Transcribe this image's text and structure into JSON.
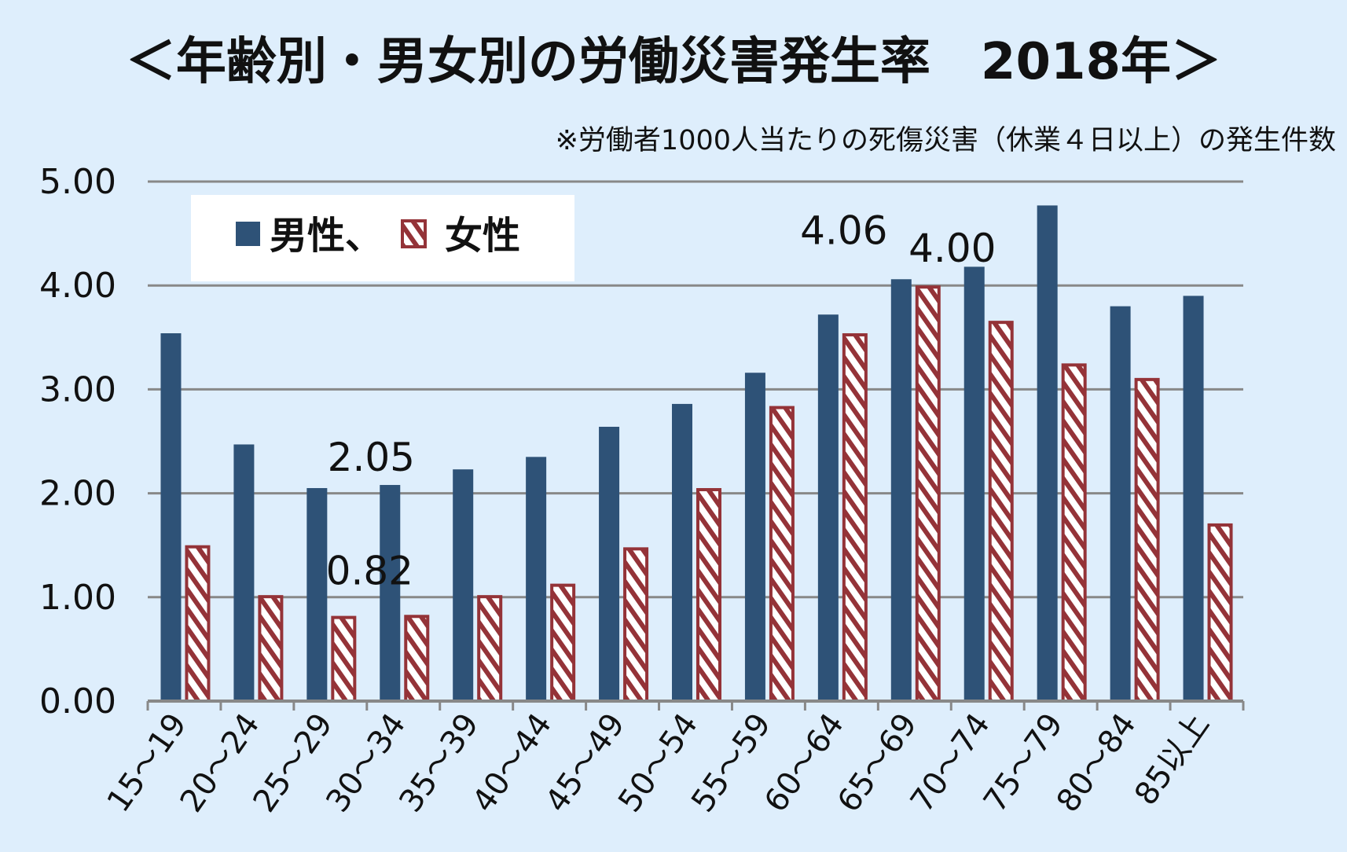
{
  "title": "＜年齢別・男女別の労働災害発生率　2018年＞",
  "subtitle": "※労働者1000人当たりの死傷災害（休業４日以上）の発生件数",
  "colors": {
    "background": "#deeefc",
    "male": "#2e5277",
    "female_border": "#943338",
    "grid": "#888888"
  },
  "legend": {
    "male_label": "男性、",
    "female_label": "女性"
  },
  "chart_data": {
    "type": "bar",
    "categories": [
      "15～19",
      "20～24",
      "25～29",
      "30～34",
      "35～39",
      "40～44",
      "45～49",
      "50～54",
      "55～59",
      "60～64",
      "65～69",
      "70～74",
      "75～79",
      "80～84",
      "85以上"
    ],
    "series": [
      {
        "name": "男性",
        "values": [
          3.54,
          2.47,
          2.05,
          2.08,
          2.23,
          2.35,
          2.64,
          2.86,
          3.16,
          3.72,
          4.06,
          4.18,
          4.77,
          3.8,
          3.9
        ]
      },
      {
        "name": "女性",
        "values": [
          1.5,
          1.02,
          0.82,
          0.83,
          1.02,
          1.13,
          1.48,
          2.05,
          2.84,
          3.54,
          4.0,
          3.66,
          3.25,
          3.11,
          1.71
        ]
      }
    ],
    "ylim": [
      0,
      5
    ],
    "yticks": [
      "0.00",
      "1.00",
      "2.00",
      "3.00",
      "4.00",
      "5.00"
    ],
    "grid": true,
    "legend_position": "top-left",
    "annotations": [
      {
        "text": "2.05",
        "category": 2,
        "series": 0
      },
      {
        "text": "0.82",
        "category": 2,
        "series": 1
      },
      {
        "text": "4.06",
        "category": 10,
        "series": 0
      },
      {
        "text": "4.00",
        "category": 10,
        "series": 1
      }
    ]
  }
}
